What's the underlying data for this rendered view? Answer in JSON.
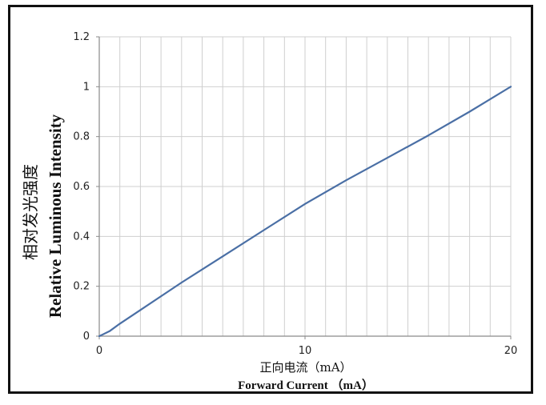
{
  "chart_data": {
    "type": "line",
    "xlabel_cn": "正向电流（mA）",
    "xlabel": "Forward Current （mA）",
    "ylabel_cn": "相对发光强度",
    "ylabel": "Relative Luminous Intensity",
    "xlim": [
      0,
      20
    ],
    "ylim": [
      0,
      1.2
    ],
    "x_ticks": [
      0,
      10,
      20
    ],
    "x_tick_labels": [
      "0",
      "10",
      "20"
    ],
    "y_ticks": [
      0,
      0.2,
      0.4,
      0.6,
      0.8,
      1,
      1.2
    ],
    "y_tick_labels": [
      "0",
      "0.2",
      "0.4",
      "0.6",
      "0.8",
      "1",
      "1.2"
    ],
    "grid": true,
    "line_color": "#4a6fa5",
    "series": [
      {
        "x": [
          0,
          0.5,
          1,
          2,
          4,
          6,
          8,
          10,
          12,
          14,
          16,
          18,
          20
        ],
        "y": [
          0,
          0.02,
          0.05,
          0.105,
          0.215,
          0.32,
          0.425,
          0.53,
          0.625,
          0.715,
          0.805,
          0.9,
          1.0
        ]
      }
    ]
  }
}
